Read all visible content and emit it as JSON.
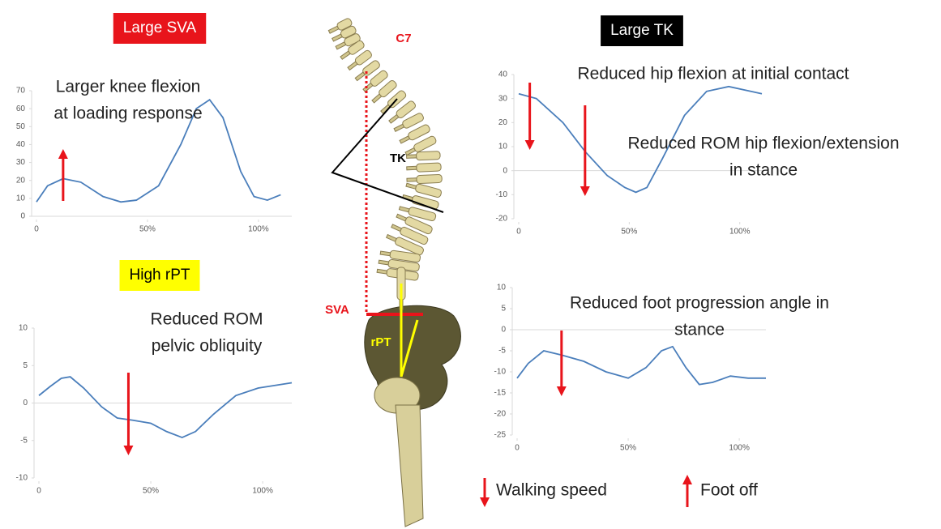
{
  "chart_data": [
    {
      "type": "line",
      "title": "Large SVA",
      "title_box_color": "#e8141b",
      "title_color": "#ffffff",
      "annotations": [
        [
          "Larger knee flexion",
          "at loading response"
        ]
      ],
      "x": [
        0,
        5,
        12,
        20,
        30,
        38,
        45,
        55,
        65,
        72,
        78,
        84,
        92,
        98,
        104,
        110
      ],
      "series": [
        {
          "color": "#4a7ebb",
          "values": [
            8,
            17,
            21,
            19,
            11,
            8,
            9,
            17,
            40,
            60,
            65,
            55,
            25,
            11,
            9,
            12
          ]
        }
      ],
      "xlim": [
        0,
        115
      ],
      "xticks": [
        0,
        {
          "value": 50,
          "label": "50%"
        },
        {
          "value": 100,
          "label": "100%"
        }
      ],
      "ylim": [
        0,
        70
      ],
      "yticks": [
        0,
        10,
        20,
        30,
        40,
        50,
        60,
        70
      ]
    },
    {
      "type": "line",
      "title": "High rPT",
      "title_box_color": "#ffff00",
      "title_color": "#000000",
      "annotations": [
        [
          "Reduced ROM",
          "pelvic obliquity"
        ]
      ],
      "x": [
        0,
        5,
        10,
        14,
        20,
        28,
        35,
        42,
        50,
        57,
        64,
        70,
        78,
        88,
        98,
        113
      ],
      "series": [
        {
          "color": "#4a7ebb",
          "values": [
            1,
            2.2,
            3.3,
            3.5,
            2,
            -0.5,
            -2,
            -2.3,
            -2.7,
            -3.8,
            -4.6,
            -3.8,
            -1.5,
            1,
            2,
            2.7
          ]
        }
      ],
      "xlim": [
        0,
        113
      ],
      "xticks": [
        0,
        {
          "value": 50,
          "label": "50%"
        },
        {
          "value": 100,
          "label": "100%"
        }
      ],
      "ylim": [
        -10,
        10
      ],
      "yticks": [
        -10,
        -5,
        0,
        5,
        10
      ]
    },
    {
      "type": "line",
      "title": "Large TK",
      "title_box_color": "#000000",
      "title_color": "#ffffff",
      "annotations": [
        [
          "Reduced hip flexion at initial contact"
        ],
        [
          "Reduced ROM hip flexion/extension",
          "in stance"
        ]
      ],
      "x": [
        0,
        8,
        20,
        30,
        40,
        48,
        53,
        58,
        65,
        75,
        85,
        95,
        105,
        110
      ],
      "series": [
        {
          "color": "#4a7ebb",
          "values": [
            32,
            30,
            20,
            8,
            -2,
            -7,
            -9,
            -7,
            5,
            23,
            33,
            35,
            33,
            32
          ]
        }
      ],
      "xlim": [
        0,
        110
      ],
      "xticks": [
        0,
        {
          "value": 50,
          "label": "50%"
        },
        {
          "value": 100,
          "label": "100%"
        }
      ],
      "ylim": [
        -20,
        40
      ],
      "yticks": [
        -20,
        -10,
        0,
        10,
        20,
        30,
        40
      ]
    },
    {
      "type": "line",
      "annotations": [
        [
          "Reduced foot progression angle in",
          "stance"
        ]
      ],
      "x": [
        0,
        5,
        12,
        20,
        30,
        40,
        50,
        58,
        65,
        70,
        76,
        82,
        88,
        96,
        104,
        112
      ],
      "series": [
        {
          "color": "#4a7ebb",
          "values": [
            -11.5,
            -8,
            -5,
            -6,
            -7.5,
            -10,
            -11.5,
            -9,
            -5,
            -4,
            -9,
            -13,
            -12.5,
            -11,
            -11.5,
            -11.5
          ]
        }
      ],
      "xlim": [
        0,
        112
      ],
      "xticks": [
        0,
        {
          "value": 50,
          "label": "50%"
        },
        {
          "value": 100,
          "label": "100%"
        }
      ],
      "ylim": [
        -25,
        10
      ],
      "yticks": [
        -25,
        -20,
        -15,
        -10,
        -5,
        0,
        5,
        10
      ]
    }
  ],
  "figure": {
    "spine_labels": [
      "C7",
      "TK",
      "SVA",
      "rPT"
    ],
    "legend": [
      "Walking speed",
      "Foot off"
    ]
  }
}
